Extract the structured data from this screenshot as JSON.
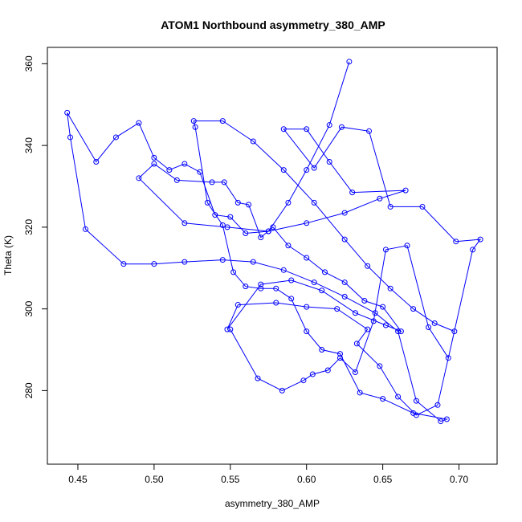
{
  "chart_data": {
    "type": "line",
    "title": "ATOM1 Northbound asymmetry_380_AMP",
    "xlabel": "asymmetry_380_AMP",
    "ylabel": "Theta (K)",
    "xlim": [
      0.43,
      0.725
    ],
    "ylim": [
      262,
      364
    ],
    "xticks": [
      0.45,
      0.5,
      0.55,
      0.6,
      0.65,
      0.7
    ],
    "xtick_labels": [
      "0.45",
      "0.50",
      "0.55",
      "0.60",
      "0.65",
      "0.70"
    ],
    "yticks": [
      280,
      300,
      320,
      340,
      360
    ],
    "ytick_labels": [
      "280",
      "300",
      "320",
      "340",
      "360"
    ],
    "grid": false,
    "line_color": "#0000ff",
    "marker": "open-circle",
    "series": [
      {
        "x": [
          0.628,
          0.615,
          0.6,
          0.588,
          0.575,
          0.56,
          0.55,
          0.54,
          0.53,
          0.52,
          0.51,
          0.5,
          0.49,
          0.475,
          0.462,
          0.443,
          0.445,
          0.455,
          0.48,
          0.5,
          0.52,
          0.545,
          0.565,
          0.585,
          0.605,
          0.625,
          0.645,
          0.66,
          0.672,
          0.688,
          0.692,
          0.67,
          0.65,
          0.635,
          0.622,
          0.61,
          0.6,
          0.59,
          0.58,
          0.57,
          0.56,
          0.552,
          0.545,
          0.535,
          0.527,
          0.526,
          0.545,
          0.565,
          0.585,
          0.605,
          0.625,
          0.64,
          0.655,
          0.67,
          0.684,
          0.697,
          0.686,
          0.672,
          0.66,
          0.648,
          0.633,
          0.64,
          0.62,
          0.6,
          0.58,
          0.555,
          0.548,
          0.57,
          0.59,
          0.61,
          0.632,
          0.652,
          0.662,
          0.65,
          0.638,
          0.625,
          0.612,
          0.6,
          0.588,
          0.578,
          0.57,
          0.562,
          0.555,
          0.546,
          0.538,
          0.515,
          0.5,
          0.49,
          0.52,
          0.548,
          0.575,
          0.6,
          0.625,
          0.648,
          0.665,
          0.63,
          0.615,
          0.6,
          0.585,
          0.605,
          0.623,
          0.641,
          0.655,
          0.676,
          0.698,
          0.714,
          0.709,
          0.693,
          0.68,
          0.666,
          0.652,
          0.644,
          0.632,
          0.622,
          0.614,
          0.604,
          0.598,
          0.584,
          0.568,
          0.55
        ],
        "y": [
          360.5,
          345.0,
          334.0,
          326.0,
          319.0,
          318.5,
          322.5,
          323.0,
          333.5,
          335.5,
          334.0,
          337.0,
          345.5,
          342.0,
          336.0,
          348.0,
          342.0,
          319.5,
          311.0,
          311.0,
          311.5,
          312.0,
          311.5,
          309.5,
          306.5,
          303.0,
          299.0,
          294.5,
          277.5,
          272.5,
          273.0,
          274.5,
          278.0,
          279.5,
          289.0,
          290.0,
          294.5,
          302.5,
          305.0,
          305.0,
          305.5,
          309.0,
          320.5,
          326.0,
          344.5,
          346.0,
          346.0,
          341.0,
          334.0,
          326.0,
          317.0,
          310.5,
          305.0,
          300.0,
          296.5,
          294.5,
          276.5,
          274.0,
          278.5,
          286.0,
          291.5,
          295.0,
          300.0,
          300.5,
          301.5,
          301.0,
          295.0,
          306.0,
          307.0,
          304.5,
          299.0,
          296.0,
          294.5,
          300.5,
          302.0,
          306.5,
          309.0,
          312.5,
          315.5,
          320.0,
          317.5,
          325.5,
          326.0,
          331.0,
          331.0,
          331.5,
          335.5,
          332.0,
          321.0,
          320.0,
          319.0,
          321.0,
          323.5,
          327.0,
          329.0,
          328.5,
          336.0,
          344.0,
          344.0,
          334.5,
          344.5,
          343.5,
          325.0,
          325.0,
          316.5,
          317.0,
          314.5,
          288.0,
          295.5,
          315.5,
          314.5,
          297.0,
          284.5,
          288.0,
          285.0,
          284.0,
          282.5,
          280.0,
          283.0,
          295.0
        ]
      }
    ]
  }
}
